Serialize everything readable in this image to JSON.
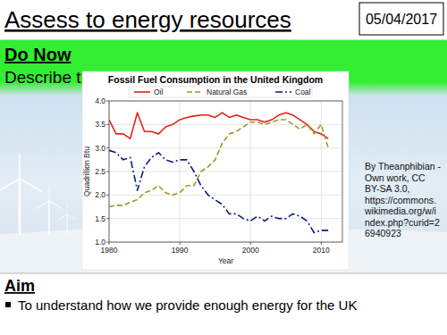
{
  "slide": {
    "title": "Assess to energy resources",
    "date": "05/04/2017",
    "do_now": {
      "heading": "Do Now",
      "text": "Describe the graph below"
    },
    "attribution": [
      "By Theanphibian -",
      "Own work, CC",
      "BY-SA 3.0,",
      "https://commons.",
      "wikimedia.org/w/i",
      "ndex.php?curid=2",
      "6940923"
    ],
    "aim": {
      "heading": "Aim",
      "bullets": [
        "To understand how we provide enough energy for the UK"
      ]
    }
  },
  "chart_data": {
    "type": "line",
    "title": "Fossil Fuel Consumption in the United Kingdom",
    "x_label": "Year",
    "y_label": "Quadrillion Btu",
    "x": [
      1980,
      1981,
      1982,
      1983,
      1984,
      1985,
      1986,
      1987,
      1988,
      1989,
      1990,
      1991,
      1992,
      1993,
      1994,
      1995,
      1996,
      1997,
      1998,
      1999,
      2000,
      2001,
      2002,
      2003,
      2004,
      2005,
      2006,
      2007,
      2008,
      2009,
      2010,
      2011
    ],
    "series": [
      {
        "name": "Oil",
        "color": "#e3231b",
        "line_style": "solid",
        "values": [
          3.6,
          3.3,
          3.3,
          3.2,
          3.75,
          3.35,
          3.35,
          3.3,
          3.45,
          3.5,
          3.6,
          3.65,
          3.68,
          3.7,
          3.7,
          3.65,
          3.75,
          3.65,
          3.7,
          3.65,
          3.6,
          3.6,
          3.55,
          3.6,
          3.7,
          3.75,
          3.7,
          3.6,
          3.5,
          3.35,
          3.3,
          3.2
        ]
      },
      {
        "name": "Natural Gas",
        "color": "#9a9a2c",
        "line_style": "dashed",
        "values": [
          1.75,
          1.78,
          1.78,
          1.85,
          1.9,
          2.05,
          2.1,
          2.2,
          2.05,
          2.0,
          2.05,
          2.2,
          2.2,
          2.5,
          2.6,
          2.75,
          3.1,
          3.3,
          3.35,
          3.45,
          3.55,
          3.55,
          3.5,
          3.55,
          3.6,
          3.6,
          3.5,
          3.4,
          3.5,
          3.3,
          3.5,
          3.0
        ]
      },
      {
        "name": "Coal",
        "color": "#0b1c80",
        "line_style": "dash-dot",
        "values": [
          2.95,
          2.9,
          2.75,
          2.8,
          2.1,
          2.6,
          2.8,
          2.9,
          2.75,
          2.7,
          2.75,
          2.75,
          2.5,
          2.2,
          2.0,
          1.9,
          1.8,
          1.6,
          1.6,
          1.5,
          1.45,
          1.55,
          1.45,
          1.55,
          1.5,
          1.5,
          1.6,
          1.55,
          1.45,
          1.2,
          1.25,
          1.25
        ]
      }
    ],
    "xlim": [
      1980,
      2013
    ],
    "xticks": [
      1980,
      1990,
      2000,
      2010
    ],
    "ylim": [
      1,
      4
    ],
    "yticks": [
      {
        "value": 1,
        "label": "1.0"
      },
      {
        "value": 1.5,
        "label": "1.5"
      },
      {
        "value": 2,
        "label": "2.0"
      },
      {
        "value": 2.5,
        "label": "2.5"
      },
      {
        "value": 3,
        "label": "3.0"
      },
      {
        "value": 3.5,
        "label": "3.5"
      },
      {
        "value": 4,
        "label": "4.0"
      }
    ],
    "grid": true,
    "legend": "top"
  }
}
